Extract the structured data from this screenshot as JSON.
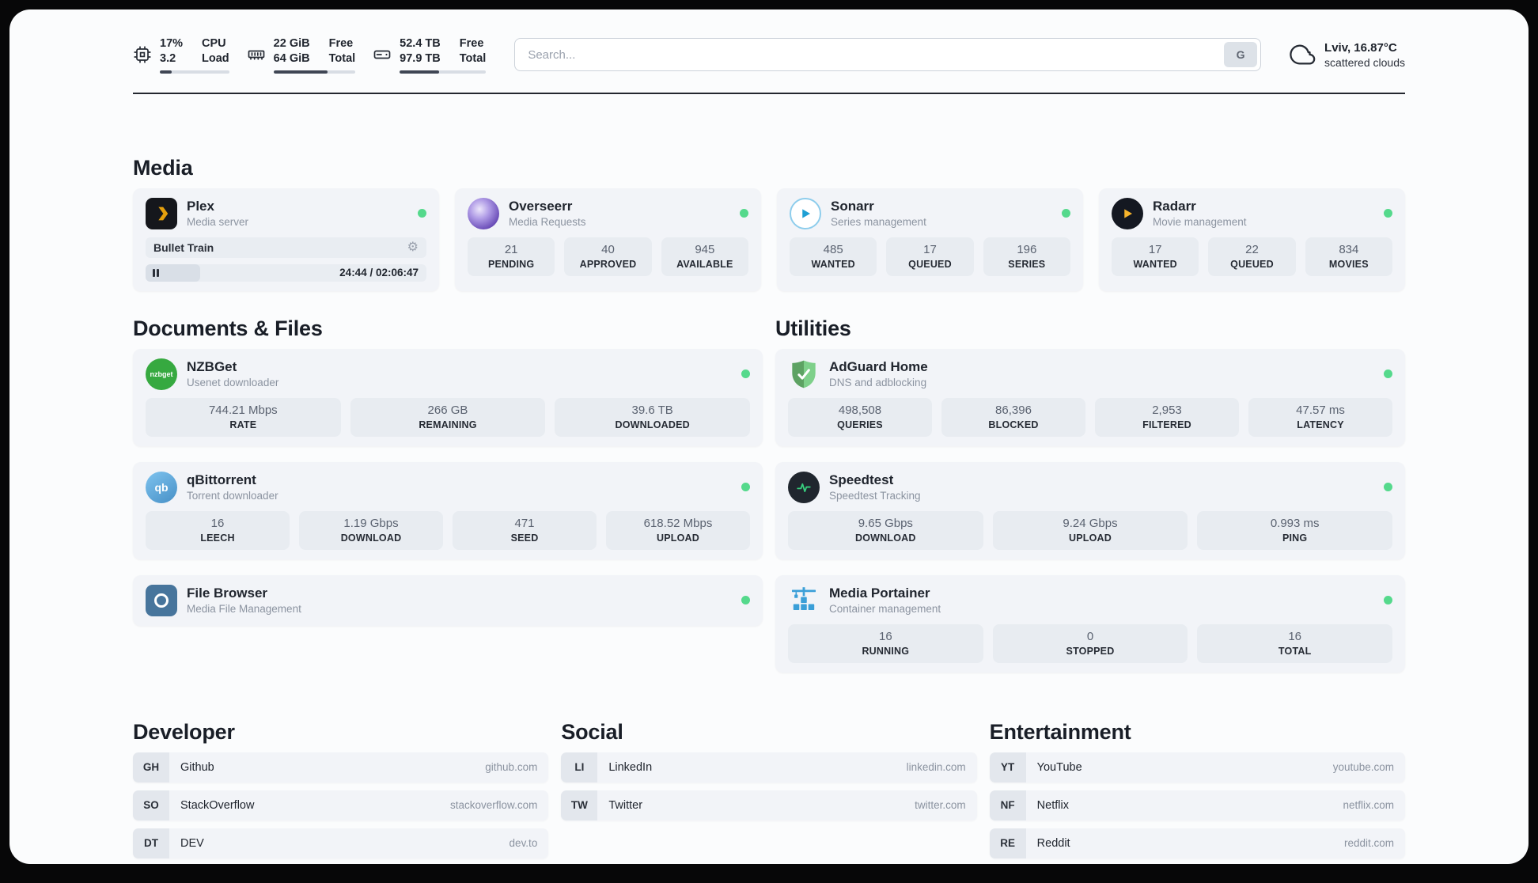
{
  "header": {
    "cpu": {
      "value_line1": "17%",
      "value_line2": "3.2",
      "label_line1": "CPU",
      "label_line2": "Load",
      "bar_pct": 17
    },
    "ram": {
      "value_line1": "22 GiB",
      "value_line2": "64 GiB",
      "label_line1": "Free",
      "label_line2": "Total",
      "bar_pct": 66
    },
    "disk": {
      "value_line1": "52.4 TB",
      "value_line2": "97.9 TB",
      "label_line1": "Free",
      "label_line2": "Total",
      "bar_pct": 46
    },
    "search": {
      "placeholder": "Search...",
      "engine_button": "G"
    },
    "weather": {
      "location_temp": "Lviv, 16.87°C",
      "condition": "scattered clouds"
    }
  },
  "colors": {
    "status_online": "#55d98c"
  },
  "media": {
    "heading": "Media",
    "plex": {
      "name": "Plex",
      "subtitle": "Media server",
      "status": "online",
      "player": {
        "title": "Bullet Train",
        "time": "24:44 / 02:06:47",
        "progress_pct": 19.5
      }
    },
    "overseerr": {
      "name": "Overseerr",
      "subtitle": "Media Requests",
      "status": "online",
      "stats": [
        {
          "value": "21",
          "label": "PENDING"
        },
        {
          "value": "40",
          "label": "APPROVED"
        },
        {
          "value": "945",
          "label": "AVAILABLE"
        }
      ]
    },
    "sonarr": {
      "name": "Sonarr",
      "subtitle": "Series management",
      "status": "online",
      "stats": [
        {
          "value": "485",
          "label": "WANTED"
        },
        {
          "value": "17",
          "label": "QUEUED"
        },
        {
          "value": "196",
          "label": "SERIES"
        }
      ]
    },
    "radarr": {
      "name": "Radarr",
      "subtitle": "Movie management",
      "status": "online",
      "stats": [
        {
          "value": "17",
          "label": "WANTED"
        },
        {
          "value": "22",
          "label": "QUEUED"
        },
        {
          "value": "834",
          "label": "MOVIES"
        }
      ]
    }
  },
  "documents": {
    "heading": "Documents & Files",
    "nzbget": {
      "name": "NZBGet",
      "subtitle": "Usenet downloader",
      "status": "online",
      "stats": [
        {
          "value": "744.21 Mbps",
          "label": "RATE"
        },
        {
          "value": "266 GB",
          "label": "REMAINING"
        },
        {
          "value": "39.6 TB",
          "label": "DOWNLOADED"
        }
      ]
    },
    "qbittorrent": {
      "name": "qBittorrent",
      "subtitle": "Torrent downloader",
      "status": "online",
      "stats": [
        {
          "value": "16",
          "label": "LEECH"
        },
        {
          "value": "1.19 Gbps",
          "label": "DOWNLOAD"
        },
        {
          "value": "471",
          "label": "SEED"
        },
        {
          "value": "618.52 Mbps",
          "label": "UPLOAD"
        }
      ]
    },
    "filebrowser": {
      "name": "File Browser",
      "subtitle": "Media File Management",
      "status": "online"
    }
  },
  "utilities": {
    "heading": "Utilities",
    "adguard": {
      "name": "AdGuard Home",
      "subtitle": "DNS and adblocking",
      "status": "online",
      "stats": [
        {
          "value": "498,508",
          "label": "QUERIES"
        },
        {
          "value": "86,396",
          "label": "BLOCKED"
        },
        {
          "value": "2,953",
          "label": "FILTERED"
        },
        {
          "value": "47.57 ms",
          "label": "LATENCY"
        }
      ]
    },
    "speedtest": {
      "name": "Speedtest",
      "subtitle": "Speedtest Tracking",
      "status": "online",
      "stats": [
        {
          "value": "9.65 Gbps",
          "label": "DOWNLOAD"
        },
        {
          "value": "9.24 Gbps",
          "label": "UPLOAD"
        },
        {
          "value": "0.993 ms",
          "label": "PING"
        }
      ]
    },
    "portainer": {
      "name": "Media Portainer",
      "subtitle": "Container management",
      "status": "online",
      "stats": [
        {
          "value": "16",
          "label": "RUNNING"
        },
        {
          "value": "0",
          "label": "STOPPED"
        },
        {
          "value": "16",
          "label": "TOTAL"
        }
      ]
    }
  },
  "bookmarks": {
    "developer": {
      "heading": "Developer",
      "items": [
        {
          "abbr": "GH",
          "name": "Github",
          "url": "github.com"
        },
        {
          "abbr": "SO",
          "name": "StackOverflow",
          "url": "stackoverflow.com"
        },
        {
          "abbr": "DT",
          "name": "DEV",
          "url": "dev.to"
        }
      ]
    },
    "social": {
      "heading": "Social",
      "items": [
        {
          "abbr": "LI",
          "name": "LinkedIn",
          "url": "linkedin.com"
        },
        {
          "abbr": "TW",
          "name": "Twitter",
          "url": "twitter.com"
        }
      ]
    },
    "entertainment": {
      "heading": "Entertainment",
      "items": [
        {
          "abbr": "YT",
          "name": "YouTube",
          "url": "youtube.com"
        },
        {
          "abbr": "NF",
          "name": "Netflix",
          "url": "netflix.com"
        },
        {
          "abbr": "RE",
          "name": "Reddit",
          "url": "reddit.com"
        }
      ]
    }
  }
}
